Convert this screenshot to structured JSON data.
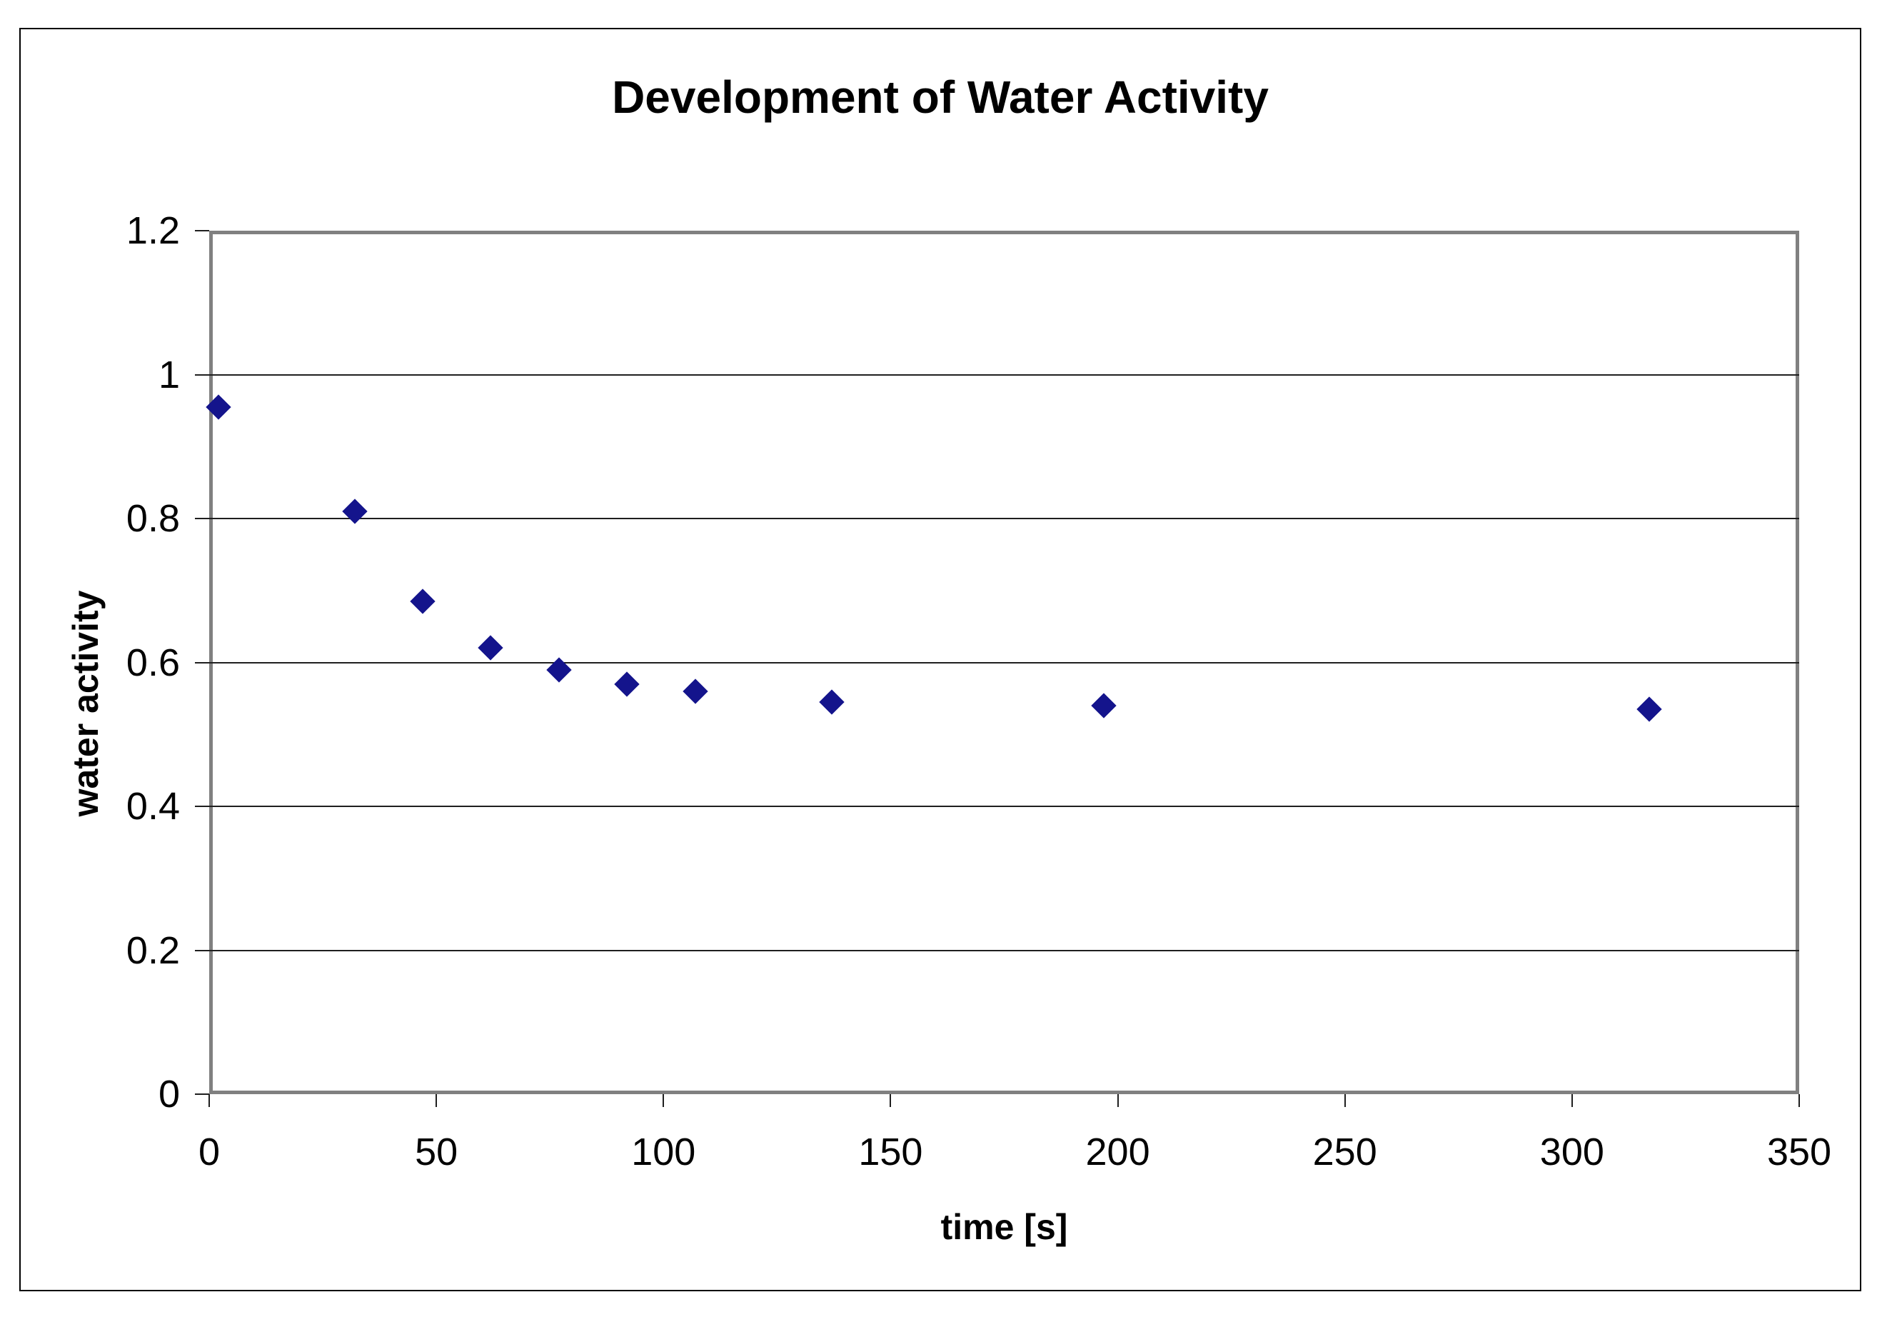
{
  "chart_data": {
    "type": "scatter",
    "title": "Development of Water Activity",
    "xlabel": "time [s]",
    "ylabel": "water activity",
    "xlim": [
      0,
      350
    ],
    "ylim": [
      0,
      1.2
    ],
    "x_tick_step": 50,
    "y_tick_step": 0.2,
    "x_tick_labels": [
      "0",
      "50",
      "100",
      "150",
      "200",
      "250",
      "300",
      "350"
    ],
    "y_tick_labels": [
      "0",
      "0.2",
      "0.4",
      "0.6",
      "0.8",
      "1",
      "1.2"
    ],
    "grid": "horizontal",
    "legend": "none",
    "series": [
      {
        "name": "water activity",
        "marker": "diamond",
        "color": "#14148c",
        "points": [
          {
            "x": 2,
            "y": 0.955
          },
          {
            "x": 32,
            "y": 0.81
          },
          {
            "x": 47,
            "y": 0.685
          },
          {
            "x": 62,
            "y": 0.62
          },
          {
            "x": 77,
            "y": 0.59
          },
          {
            "x": 92,
            "y": 0.57
          },
          {
            "x": 107,
            "y": 0.56
          },
          {
            "x": 137,
            "y": 0.545
          },
          {
            "x": 197,
            "y": 0.54
          },
          {
            "x": 317,
            "y": 0.535
          }
        ]
      }
    ],
    "style": {
      "plot_border_color": "#808080",
      "outer_border_color": "#000000",
      "gridline_color": "#1f1f1f",
      "background_color": "#ffffff",
      "text_color": "#000000"
    }
  }
}
